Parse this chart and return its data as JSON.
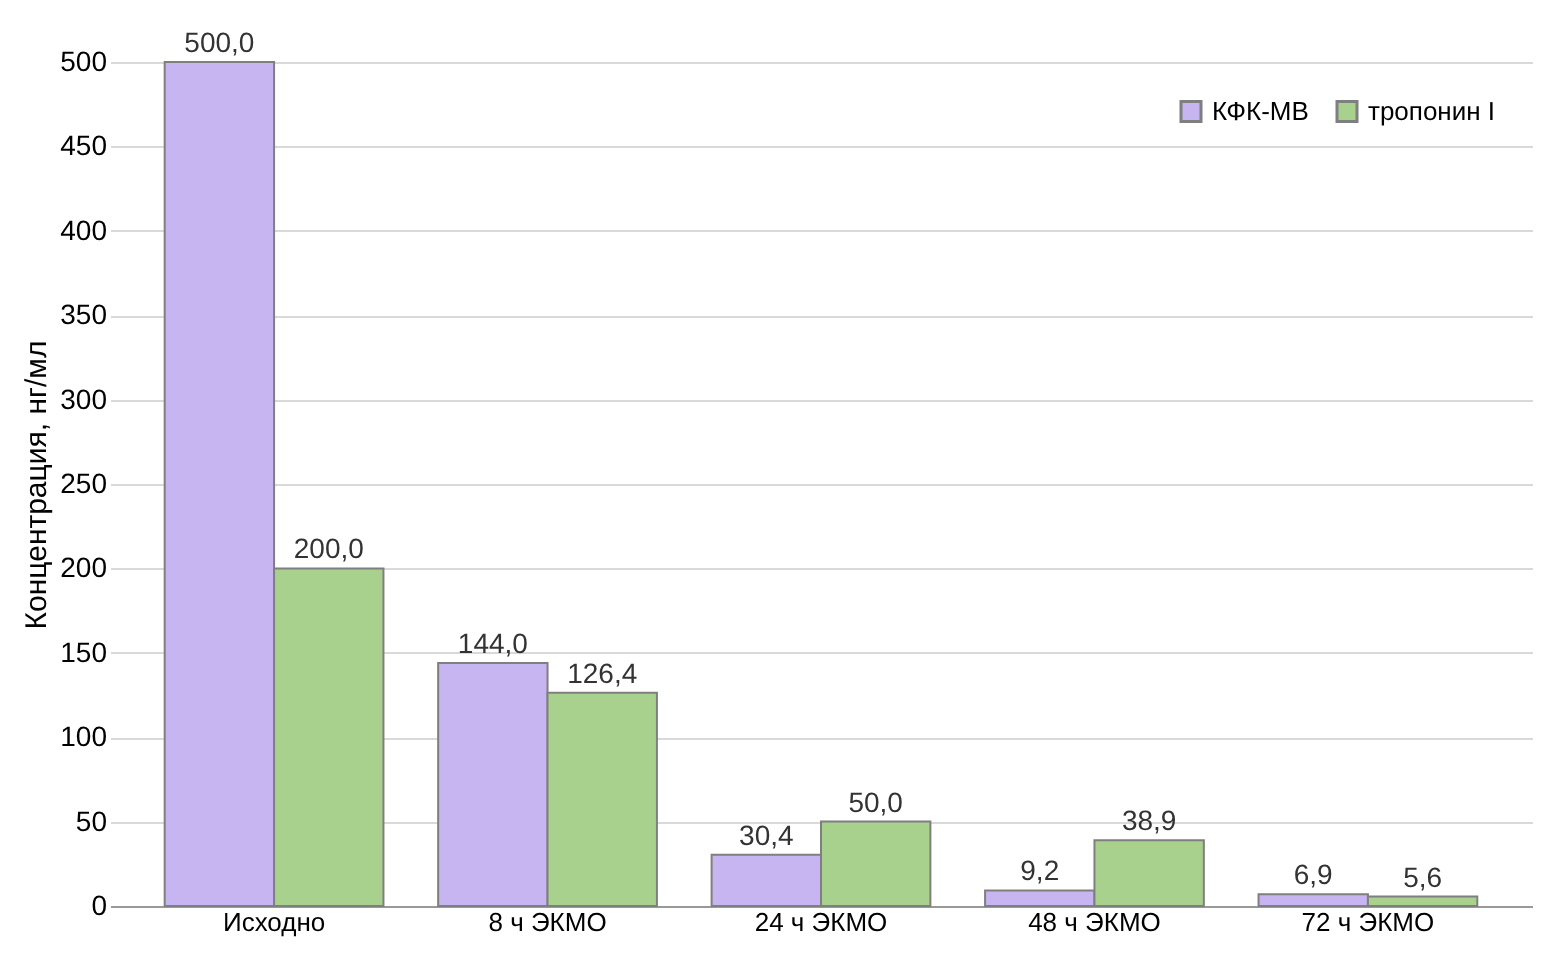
{
  "chart_data": {
    "type": "bar",
    "ylabel": "Концентрация, нг/мл",
    "categories": [
      "Исходно",
      "8 ч ЭКМО",
      "24 ч ЭКМО",
      "48 ч ЭКМО",
      "72 ч ЭКМО"
    ],
    "series": [
      {
        "name": "КФК-МВ",
        "color": "#c6b5f0",
        "values": [
          500.0,
          144.0,
          30.4,
          9.2,
          6.9
        ],
        "value_labels": [
          "500,0",
          "144,0",
          "30,4",
          "9,2",
          "6,9"
        ]
      },
      {
        "name": "тропонин I",
        "color": "#a9d18e",
        "values": [
          200.0,
          126.4,
          50.0,
          38.9,
          5.6
        ],
        "value_labels": [
          "200,0",
          "126,4",
          "50,0",
          "38,9",
          "5,6"
        ]
      }
    ],
    "ylim": [
      0,
      500
    ],
    "yticks": [
      0,
      50,
      100,
      150,
      200,
      250,
      300,
      350,
      400,
      450,
      500
    ],
    "grid": "y",
    "legend": "top right"
  }
}
